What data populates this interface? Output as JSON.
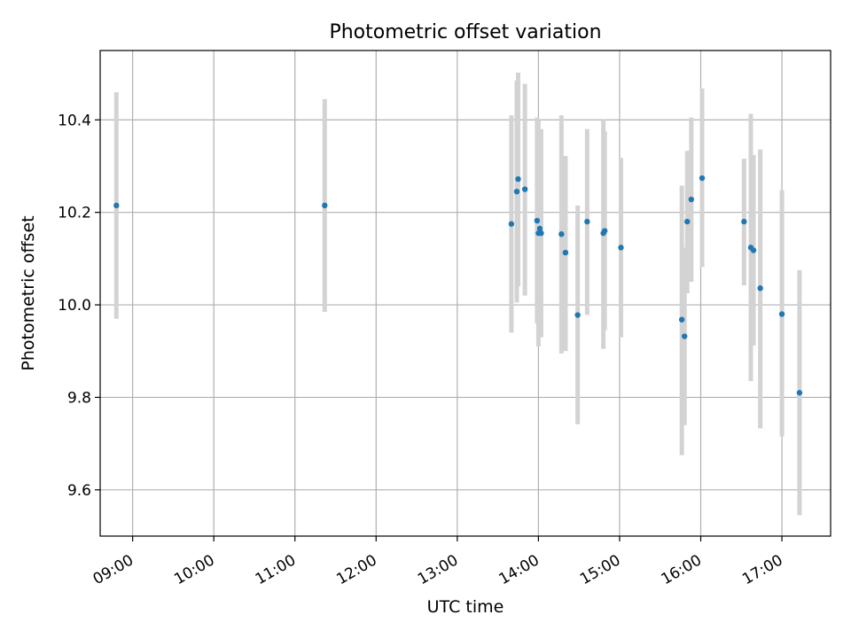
{
  "chart_data": {
    "type": "scatter",
    "title": "Photometric offset variation",
    "xlabel": "UTC time",
    "ylabel": "Photometric offset",
    "x_unit": "UTC time (HH:MM)",
    "xlim": [
      "08:36",
      "17:36"
    ],
    "ylim": [
      9.5,
      10.55
    ],
    "xticks": [
      "09:00",
      "10:00",
      "11:00",
      "12:00",
      "13:00",
      "14:00",
      "15:00",
      "16:00",
      "17:00"
    ],
    "yticks": [
      "9.6",
      "9.8",
      "10.0",
      "10.2",
      "10.4"
    ],
    "grid": true,
    "point_color": "#1f77b4",
    "errorbar_color": "#d3d3d3",
    "points": [
      {
        "x": "08:48",
        "y": 10.215,
        "ylow": 9.97,
        "yhigh": 10.46
      },
      {
        "x": "11:22",
        "y": 10.215,
        "ylow": 9.985,
        "yhigh": 10.445
      },
      {
        "x": "13:40",
        "y": 10.175,
        "ylow": 9.94,
        "yhigh": 10.41
      },
      {
        "x": "13:44",
        "y": 10.245,
        "ylow": 10.005,
        "yhigh": 10.485
      },
      {
        "x": "13:45",
        "y": 10.272,
        "ylow": 10.04,
        "yhigh": 10.502
      },
      {
        "x": "13:50",
        "y": 10.25,
        "ylow": 10.02,
        "yhigh": 10.478
      },
      {
        "x": "13:59",
        "y": 10.182,
        "ylow": 9.96,
        "yhigh": 10.405
      },
      {
        "x": "14:00",
        "y": 10.155,
        "ylow": 9.91,
        "yhigh": 10.4
      },
      {
        "x": "14:01",
        "y": 10.165,
        "ylow": 9.93,
        "yhigh": 10.38
      },
      {
        "x": "14:02",
        "y": 10.155,
        "ylow": 9.93,
        "yhigh": 10.38
      },
      {
        "x": "14:17",
        "y": 10.153,
        "ylow": 9.895,
        "yhigh": 10.41
      },
      {
        "x": "14:20",
        "y": 10.113,
        "ylow": 9.9,
        "yhigh": 10.322
      },
      {
        "x": "14:29",
        "y": 9.978,
        "ylow": 9.742,
        "yhigh": 10.215
      },
      {
        "x": "14:36",
        "y": 10.18,
        "ylow": 9.978,
        "yhigh": 10.38
      },
      {
        "x": "14:48",
        "y": 10.155,
        "ylow": 9.905,
        "yhigh": 10.402
      },
      {
        "x": "14:49",
        "y": 10.16,
        "ylow": 9.945,
        "yhigh": 10.375
      },
      {
        "x": "15:01",
        "y": 10.124,
        "ylow": 9.93,
        "yhigh": 10.318
      },
      {
        "x": "15:46",
        "y": 9.968,
        "ylow": 9.675,
        "yhigh": 10.258
      },
      {
        "x": "15:48",
        "y": 9.932,
        "ylow": 9.74,
        "yhigh": 10.124
      },
      {
        "x": "15:50",
        "y": 10.18,
        "ylow": 10.025,
        "yhigh": 10.333
      },
      {
        "x": "15:53",
        "y": 10.228,
        "ylow": 10.05,
        "yhigh": 10.405
      },
      {
        "x": "16:01",
        "y": 10.274,
        "ylow": 10.082,
        "yhigh": 10.468
      },
      {
        "x": "16:32",
        "y": 10.18,
        "ylow": 10.042,
        "yhigh": 10.316
      },
      {
        "x": "16:37",
        "y": 10.124,
        "ylow": 9.835,
        "yhigh": 10.413
      },
      {
        "x": "16:39",
        "y": 10.118,
        "ylow": 9.912,
        "yhigh": 10.324
      },
      {
        "x": "16:44",
        "y": 10.036,
        "ylow": 9.733,
        "yhigh": 10.336
      },
      {
        "x": "17:00",
        "y": 9.98,
        "ylow": 9.715,
        "yhigh": 10.248
      },
      {
        "x": "17:13",
        "y": 9.81,
        "ylow": 9.545,
        "yhigh": 10.075
      }
    ]
  }
}
